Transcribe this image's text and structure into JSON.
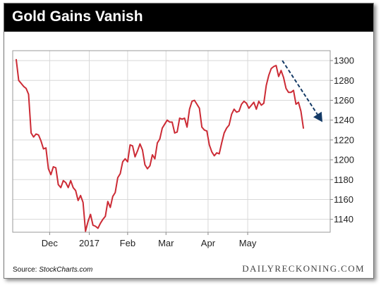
{
  "header": {
    "title": "Gold Gains Vanish"
  },
  "footer": {
    "source_prefix": "Source: ",
    "source_name": "StockCharts.com",
    "brand": "DAILYRECKONING.COM"
  },
  "colors": {
    "line": "#cc2b35",
    "arrow": "#143a66",
    "grid": "#d8d8d8",
    "title_bg": "#000000"
  },
  "chart_data": {
    "type": "line",
    "title": "Gold Gains Vanish",
    "xlabel": "",
    "ylabel": "",
    "ylim": [
      1127,
      1310
    ],
    "yticks": [
      1140,
      1160,
      1180,
      1200,
      1220,
      1240,
      1260,
      1280,
      1300
    ],
    "xticks": [
      "Dec",
      "2017",
      "Feb",
      "Mar",
      "Apr",
      "May"
    ],
    "xtick_index": [
      13.5,
      29.5,
      45,
      60.5,
      77.5,
      93.5
    ],
    "grid": true,
    "y_axis_side": "right",
    "series": [
      {
        "values": [
          1301,
          1280,
          1277,
          1274,
          1272,
          1266,
          1227,
          1223,
          1226,
          1225,
          1219,
          1211,
          1212,
          1191,
          1185,
          1193,
          1192,
          1175,
          1172,
          1179,
          1177,
          1172,
          1179,
          1172,
          1169,
          1159,
          1164,
          1157,
          1128,
          1138,
          1145,
          1134,
          1133,
          1131,
          1136,
          1140,
          1143,
          1158,
          1152,
          1163,
          1167,
          1182,
          1186,
          1198,
          1201,
          1198,
          1215,
          1214,
          1203,
          1209,
          1216,
          1210,
          1195,
          1191,
          1194,
          1205,
          1201,
          1217,
          1221,
          1232,
          1236,
          1240,
          1238,
          1238,
          1227,
          1228,
          1242,
          1241,
          1242,
          1233,
          1251,
          1259,
          1260,
          1256,
          1252,
          1233,
          1230,
          1229,
          1215,
          1208,
          1204,
          1207,
          1206,
          1217,
          1227,
          1232,
          1235,
          1246,
          1251,
          1248,
          1249,
          1256,
          1259,
          1257,
          1252,
          1255,
          1258,
          1251,
          1259,
          1255,
          1257,
          1275,
          1285,
          1292,
          1294,
          1295,
          1284,
          1290,
          1283,
          1272,
          1268,
          1268,
          1270,
          1256,
          1258,
          1249,
          1232
        ]
      }
    ],
    "annotations": [
      {
        "type": "dashed-arrow",
        "direction": "down",
        "meaning": "recent decline"
      }
    ]
  }
}
